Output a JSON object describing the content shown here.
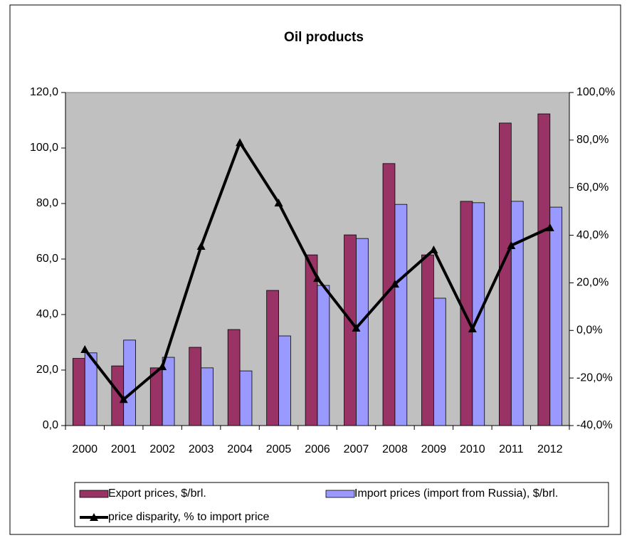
{
  "chart_data": {
    "type": "bar_line",
    "title": "Oil products",
    "categories": [
      "2000",
      "2001",
      "2002",
      "2003",
      "2004",
      "2005",
      "2006",
      "2007",
      "2008",
      "2009",
      "2010",
      "2011",
      "2012"
    ],
    "series": [
      {
        "name": "Export prices, $/brl.",
        "type": "bar",
        "color": "#993366",
        "values": [
          24.2,
          21.5,
          20.8,
          28.2,
          34.6,
          48.7,
          61.5,
          68.7,
          94.4,
          61.5,
          80.8,
          109.0,
          112.3
        ]
      },
      {
        "name": "Import prices (import from Russia), $/brl.",
        "type": "bar",
        "color": "#9999ff",
        "values": [
          26.2,
          30.8,
          24.6,
          20.8,
          19.7,
          32.3,
          50.5,
          67.4,
          79.7,
          45.9,
          80.3,
          80.8,
          78.7
        ]
      },
      {
        "name": "price disparity, % to import price",
        "type": "line",
        "axis": "y2",
        "color": "#000000",
        "values": [
          -8.0,
          -29.0,
          -15.2,
          35.4,
          79.0,
          53.6,
          21.9,
          1.0,
          19.5,
          33.9,
          0.7,
          35.7,
          43.2
        ]
      }
    ],
    "ylim": [
      0,
      120
    ],
    "yticks": [
      {
        "value": 0,
        "label": "0,0"
      },
      {
        "value": 20,
        "label": "20,0"
      },
      {
        "value": 40,
        "label": "40,0"
      },
      {
        "value": 60,
        "label": "60,0"
      },
      {
        "value": 80,
        "label": "80,0"
      },
      {
        "value": 100,
        "label": "100,0"
      },
      {
        "value": 120,
        "label": "120,0"
      }
    ],
    "y2lim": [
      -40,
      100
    ],
    "y2ticks": [
      {
        "value": -40,
        "label": "-40,0%"
      },
      {
        "value": -20,
        "label": "-20,0%"
      },
      {
        "value": 0,
        "label": "0,0%"
      },
      {
        "value": 20,
        "label": "20,0%"
      },
      {
        "value": 40,
        "label": "40,0%"
      },
      {
        "value": 60,
        "label": "60,0%"
      },
      {
        "value": 80,
        "label": "80,0%"
      },
      {
        "value": 100,
        "label": "100,0%"
      }
    ],
    "plot_background": "#c0c0c0",
    "legend": "bottom"
  }
}
